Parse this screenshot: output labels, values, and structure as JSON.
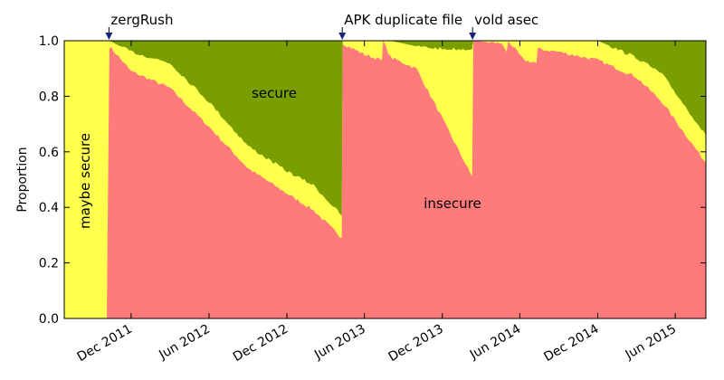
{
  "chart_data": {
    "type": "area",
    "stacked": true,
    "ylabel": "Proportion",
    "ylim": [
      0.0,
      1.0
    ],
    "yticks": [
      "0.0",
      "0.2",
      "0.4",
      "0.6",
      "0.8",
      "1.0"
    ],
    "xlim": [
      "2011-06-27",
      "2015-08-12"
    ],
    "xticks": [
      {
        "date": "2011-12-01",
        "label": "Dec 2011"
      },
      {
        "date": "2012-06-01",
        "label": "Jun 2012"
      },
      {
        "date": "2012-12-01",
        "label": "Dec 2012"
      },
      {
        "date": "2013-06-01",
        "label": "Jun 2013"
      },
      {
        "date": "2013-12-01",
        "label": "Dec 2013"
      },
      {
        "date": "2014-06-01",
        "label": "Jun 2014"
      },
      {
        "date": "2014-12-01",
        "label": "Dec 2014"
      },
      {
        "date": "2015-06-01",
        "label": "Jun 2015"
      }
    ],
    "colors": {
      "insecure": "#ff7a7a",
      "maybe_secure": "#ffff4d",
      "secure": "#7a9e00"
    },
    "region_labels": {
      "insecure": "insecure",
      "maybe_secure": "maybe secure",
      "secure": "secure"
    },
    "annotations": [
      {
        "date": "2011-10-10",
        "label": "zergRush"
      },
      {
        "date": "2013-04-10",
        "label": "APK duplicate file"
      },
      {
        "date": "2014-02-10",
        "label": "vold asec"
      }
    ],
    "series": [
      {
        "key": "insecure",
        "points": [
          [
            "2011-06-27",
            0.0
          ],
          [
            "2011-10-05",
            0.0
          ],
          [
            "2011-10-11",
            0.98
          ],
          [
            "2011-12-01",
            0.89
          ],
          [
            "2012-03-01",
            0.83
          ],
          [
            "2012-06-01",
            0.69
          ],
          [
            "2012-09-01",
            0.54
          ],
          [
            "2012-12-01",
            0.45
          ],
          [
            "2013-02-01",
            0.39
          ],
          [
            "2013-04-09",
            0.29
          ],
          [
            "2013-04-11",
            0.99
          ],
          [
            "2013-06-01",
            0.95
          ],
          [
            "2013-07-12",
            0.93
          ],
          [
            "2013-07-15",
            1.0
          ],
          [
            "2013-08-01",
            0.94
          ],
          [
            "2013-10-01",
            0.9
          ],
          [
            "2013-12-01",
            0.72
          ],
          [
            "2014-02-09",
            0.51
          ],
          [
            "2014-02-12",
            1.0
          ],
          [
            "2014-04-20",
            0.99
          ],
          [
            "2014-05-01",
            0.96
          ],
          [
            "2014-05-05",
            1.0
          ],
          [
            "2014-06-10",
            0.93
          ],
          [
            "2014-07-10",
            0.92
          ],
          [
            "2014-07-13",
            0.97
          ],
          [
            "2014-09-01",
            0.96
          ],
          [
            "2014-12-01",
            0.93
          ],
          [
            "2015-03-01",
            0.87
          ],
          [
            "2015-05-01",
            0.78
          ],
          [
            "2015-08-12",
            0.56
          ]
        ]
      },
      {
        "key": "secure",
        "points": [
          [
            "2011-06-27",
            0.0
          ],
          [
            "2011-10-05",
            0.0
          ],
          [
            "2011-10-11",
            0.0
          ],
          [
            "2011-12-01",
            0.04
          ],
          [
            "2012-03-01",
            0.08
          ],
          [
            "2012-06-01",
            0.22
          ],
          [
            "2012-09-01",
            0.38
          ],
          [
            "2012-12-01",
            0.47
          ],
          [
            "2013-02-01",
            0.52
          ],
          [
            "2013-04-09",
            0.63
          ],
          [
            "2013-04-11",
            0.0
          ],
          [
            "2013-06-01",
            0.0
          ],
          [
            "2013-07-12",
            0.0
          ],
          [
            "2013-07-15",
            0.0
          ],
          [
            "2013-08-01",
            0.0
          ],
          [
            "2013-10-01",
            0.02
          ],
          [
            "2013-12-01",
            0.03
          ],
          [
            "2014-02-09",
            0.03
          ],
          [
            "2014-02-12",
            0.0
          ],
          [
            "2014-04-20",
            0.0
          ],
          [
            "2014-05-01",
            0.0
          ],
          [
            "2014-05-05",
            0.0
          ],
          [
            "2014-06-10",
            0.0
          ],
          [
            "2014-07-10",
            0.0
          ],
          [
            "2014-07-13",
            0.0
          ],
          [
            "2014-09-01",
            0.0
          ],
          [
            "2014-12-01",
            0.0
          ],
          [
            "2015-03-01",
            0.06
          ],
          [
            "2015-05-01",
            0.12
          ],
          [
            "2015-08-12",
            0.34
          ]
        ]
      }
    ]
  }
}
